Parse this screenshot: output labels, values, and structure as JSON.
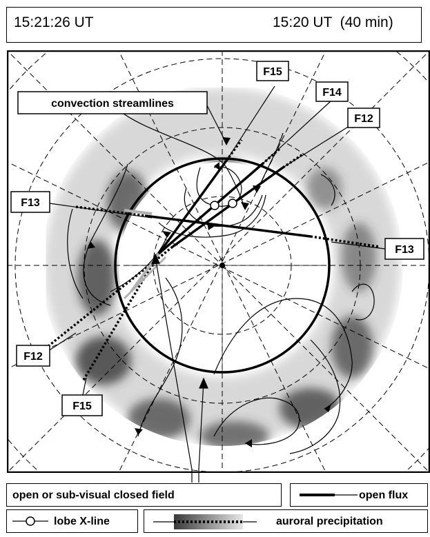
{
  "header": {
    "left_time": "15:21:26 UT",
    "right_time": "15:20 UT  (40 min)"
  },
  "diagram": {
    "satellites": {
      "f15_top": "F15",
      "f14": "F14",
      "f12_top": "F12",
      "f13_left": "F13",
      "f13_right": "F13",
      "f12_bottom": "F12",
      "f15_bottom": "F15"
    },
    "annotation": "convection streamlines"
  },
  "legend": {
    "open_closed": "open or sub-visual closed field",
    "open_flux": "open flux",
    "lobe_xline": "lobe X-line",
    "auroral": "auroral precipitation"
  },
  "colors": {
    "ink": "#000000",
    "grid": "#000000",
    "aurora_dark": "#3a3a3a",
    "aurora_light": "#cfcfcf",
    "gray_track": "#b0b0b0"
  }
}
